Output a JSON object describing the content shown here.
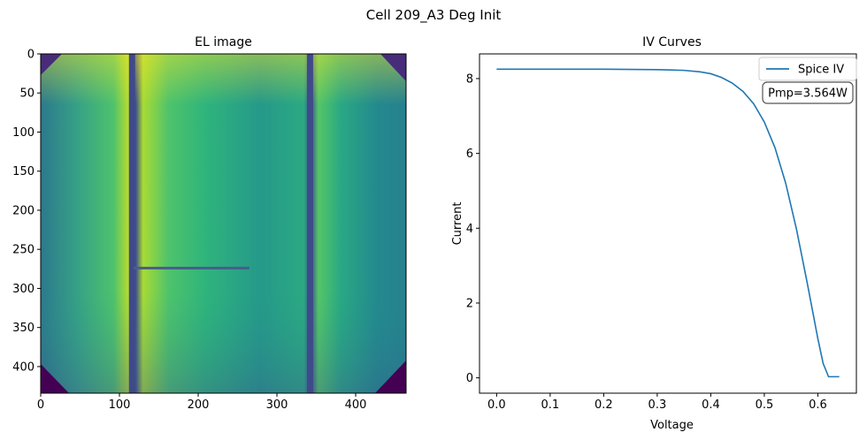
{
  "figure": {
    "suptitle": "Cell 209_A3 Deg Init"
  },
  "chart_data": [
    {
      "type": "heatmap",
      "title": "EL image",
      "xlabel": "",
      "ylabel": "",
      "xlim": [
        0,
        464
      ],
      "ylim": [
        434,
        0
      ],
      "xticks": [
        0,
        100,
        200,
        300,
        400
      ],
      "yticks": [
        0,
        50,
        100,
        150,
        200,
        250,
        300,
        350,
        400
      ],
      "colormap": "viridis",
      "busbars_x": [
        116,
        342
      ],
      "crack_y": 274,
      "crack_x_range": [
        118,
        265
      ],
      "grid": false
    },
    {
      "type": "line",
      "title": "IV Curves",
      "xlabel": "Voltage",
      "ylabel": "Current",
      "xlim": [
        -0.032,
        0.672
      ],
      "ylim": [
        -0.41,
        8.66
      ],
      "xticks": [
        0.0,
        0.1,
        0.2,
        0.3,
        0.4,
        0.5,
        0.6
      ],
      "yticks": [
        0,
        2,
        4,
        6,
        8
      ],
      "grid": false,
      "legend_position": "top-right",
      "series": [
        {
          "name": "Spice IV",
          "color": "#1f77b4",
          "x": [
            0.0,
            0.1,
            0.2,
            0.3,
            0.35,
            0.38,
            0.4,
            0.42,
            0.44,
            0.46,
            0.48,
            0.5,
            0.52,
            0.54,
            0.56,
            0.58,
            0.6,
            0.61,
            0.62,
            0.625,
            0.64
          ],
          "y": [
            8.25,
            8.25,
            8.25,
            8.24,
            8.22,
            8.18,
            8.13,
            8.03,
            7.88,
            7.66,
            7.33,
            6.84,
            6.15,
            5.2,
            3.98,
            2.55,
            1.05,
            0.38,
            0.03,
            0.03,
            0.03
          ]
        }
      ],
      "annotation": "Pmp=3.564W"
    }
  ]
}
